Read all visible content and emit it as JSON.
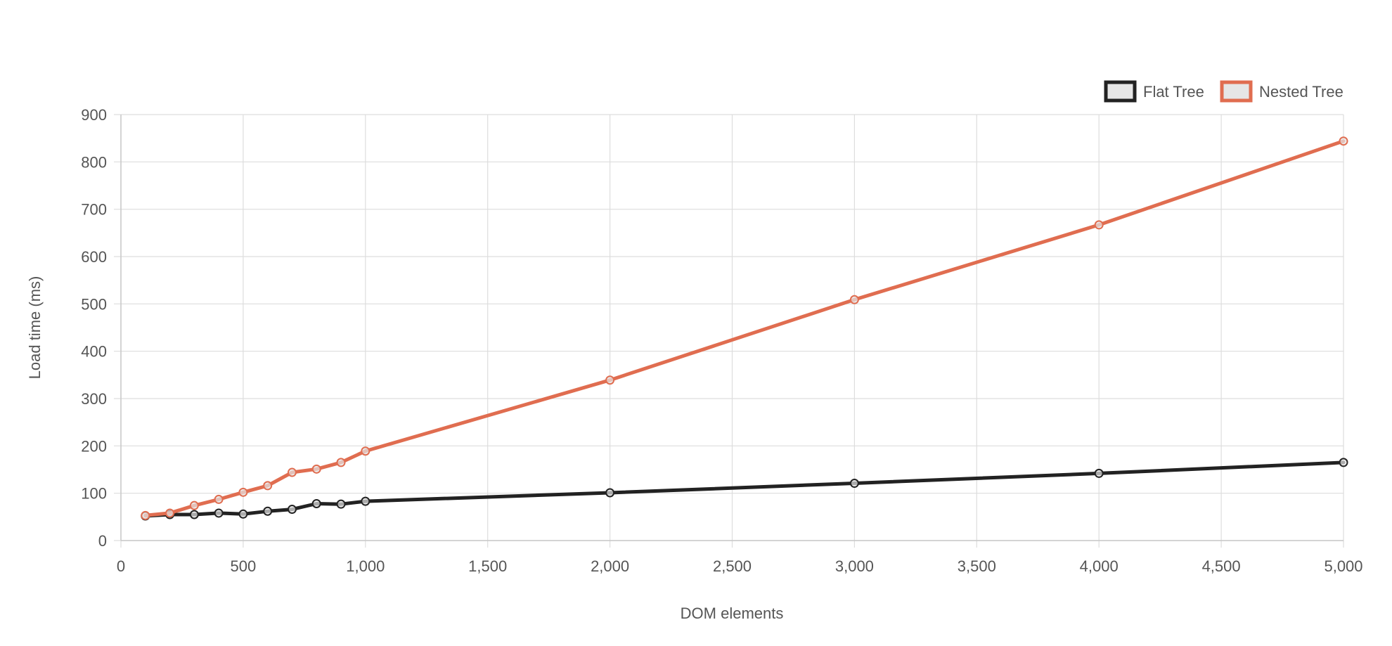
{
  "chart_data": {
    "type": "line",
    "title": "",
    "xlabel": "DOM elements",
    "ylabel": "Load time (ms)",
    "xlim": [
      0,
      5000
    ],
    "ylim": [
      0,
      900
    ],
    "x_ticks": [
      0,
      500,
      1000,
      1500,
      2000,
      2500,
      3000,
      3500,
      4000,
      4500,
      5000
    ],
    "x_tick_labels": [
      "0",
      "500",
      "1,000",
      "1,500",
      "2,000",
      "2,500",
      "3,000",
      "3,500",
      "4,000",
      "4,500",
      "5,000"
    ],
    "y_ticks": [
      0,
      100,
      200,
      300,
      400,
      500,
      600,
      700,
      800,
      900
    ],
    "y_tick_labels": [
      "0",
      "100",
      "200",
      "300",
      "400",
      "500",
      "600",
      "700",
      "800",
      "900"
    ],
    "grid": true,
    "legend_position": "top-right",
    "series": [
      {
        "name": "Flat Tree",
        "color": "#222222",
        "x": [
          100,
          200,
          300,
          400,
          500,
          600,
          700,
          800,
          900,
          1000,
          2000,
          3000,
          4000,
          5000
        ],
        "y": [
          52,
          55,
          55,
          58,
          56,
          62,
          66,
          78,
          77,
          83,
          101,
          121,
          142,
          165
        ]
      },
      {
        "name": "Nested Tree",
        "color": "#e06d50",
        "x": [
          100,
          200,
          300,
          400,
          500,
          600,
          700,
          800,
          900,
          1000,
          2000,
          3000,
          4000,
          5000
        ],
        "y": [
          53,
          58,
          74,
          87,
          102,
          116,
          144,
          151,
          165,
          189,
          339,
          509,
          667,
          844
        ]
      }
    ]
  }
}
